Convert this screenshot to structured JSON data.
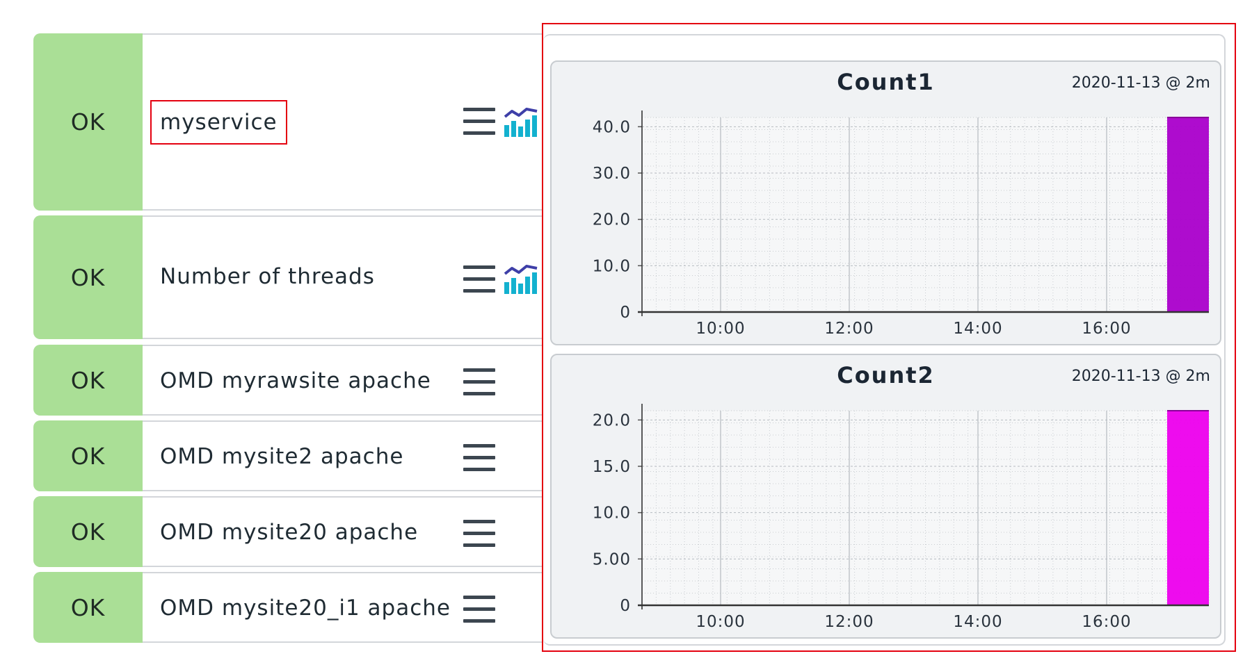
{
  "services": [
    {
      "state": "OK",
      "name": "myservice",
      "has_graph": true,
      "highlighted": true
    },
    {
      "state": "OK",
      "name": "Number of threads",
      "has_graph": true,
      "highlighted": false
    },
    {
      "state": "OK",
      "name": "OMD myrawsite apache",
      "has_graph": false,
      "highlighted": false
    },
    {
      "state": "OK",
      "name": "OMD mysite2 apache",
      "has_graph": false,
      "highlighted": false
    },
    {
      "state": "OK",
      "name": "OMD mysite20 apache",
      "has_graph": false,
      "highlighted": false
    },
    {
      "state": "OK",
      "name": "OMD mysite20_i1 apache",
      "has_graph": false,
      "highlighted": false
    }
  ],
  "icons": {
    "menu": "hamburger-menu-icon",
    "graph": "performance-graph-icon"
  },
  "colors": {
    "state_ok": "#aadf96",
    "highlight": "#e4000f",
    "bar_top": "#aa00cc",
    "bar_bottom": "#ee00ee"
  },
  "chart_data": [
    {
      "type": "bar",
      "title": "Count1",
      "timestamp": "2020-11-13 @ 2m",
      "x_ticks": [
        "10:00",
        "12:00",
        "14:00",
        "16:00"
      ],
      "y_ticks": [
        "0",
        "10.0",
        "20.0",
        "30.0",
        "40.0"
      ],
      "ylim": [
        0,
        42
      ],
      "series": [
        {
          "values": [
            42
          ]
        }
      ],
      "bar_position": "latest interval (~16:00)",
      "grid": true
    },
    {
      "type": "bar",
      "title": "Count2",
      "timestamp": "2020-11-13 @ 2m",
      "x_ticks": [
        "10:00",
        "12:00",
        "14:00",
        "16:00"
      ],
      "y_ticks": [
        "0",
        "5.00",
        "10.0",
        "15.0",
        "20.0"
      ],
      "ylim": [
        0,
        21
      ],
      "series": [
        {
          "values": [
            21
          ]
        }
      ],
      "bar_position": "latest interval (~16:00)",
      "grid": true
    }
  ]
}
